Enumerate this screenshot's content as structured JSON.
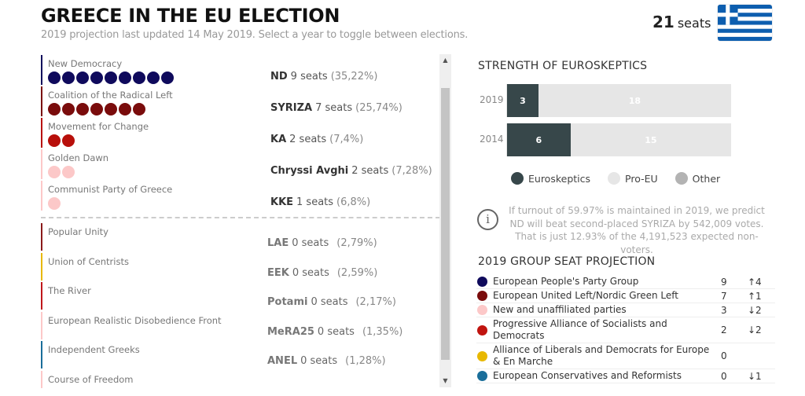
{
  "header": {
    "title": "GREECE IN THE EU ELECTION",
    "subtitle": "2019 projection last updated 14 May 2019. Select a year to toggle between elections.",
    "total_seats": "21",
    "seats_label": "seats",
    "flag_icon": "greece-flag"
  },
  "parties_with_seats": [
    {
      "name": "New Democracy",
      "abbr": "ND",
      "seats": 9,
      "seats_label": "9 seats",
      "pct": "(35,22%)",
      "color": "#0f0a5c"
    },
    {
      "name": "Coalition of the Radical Left",
      "abbr": "SYRIZA",
      "seats": 7,
      "seats_label": "7 seats",
      "pct": "(25,74%)",
      "color": "#7a0c0c"
    },
    {
      "name": "Movement for Change",
      "abbr": "KA",
      "seats": 2,
      "seats_label": "2 seats",
      "pct": "(7,4%)",
      "color": "#b80f0a"
    },
    {
      "name": "Golden Dawn",
      "abbr": "Chryssi Avghi",
      "seats": 2,
      "seats_label": "2 seats",
      "pct": "(7,28%)",
      "color": "#fcc8c8"
    },
    {
      "name": "Communist Party of Greece",
      "abbr": "KKE",
      "seats": 1,
      "seats_label": "1 seats",
      "pct": "(6,8%)",
      "color": "#fcc8c8"
    }
  ],
  "parties_without_seats": [
    {
      "name": "Popular Unity",
      "abbr": "LAE",
      "seats_label": "0 seats",
      "pct": "(2,79%)",
      "color": "#8b1a1a"
    },
    {
      "name": "Union of Centrists",
      "abbr": "EEK",
      "seats_label": "0 seats",
      "pct": "(2,59%)",
      "color": "#e8b800"
    },
    {
      "name": "The River",
      "abbr": "Potami",
      "seats_label": "0 seats",
      "pct": "(2,17%)",
      "color": "#c0181b"
    },
    {
      "name": "European Realistic Disobedience Front",
      "abbr": "MeRA25",
      "seats_label": "0 seats",
      "pct": "(1,35%)",
      "color": "#fcc8c8"
    },
    {
      "name": "Independent Greeks",
      "abbr": "ANEL",
      "seats_label": "0 seats",
      "pct": "(1,28%)",
      "color": "#1a6e9a"
    },
    {
      "name": "Course of Freedom",
      "abbr": "",
      "seats_label": "",
      "pct": "",
      "color": "#fcc8c8"
    }
  ],
  "euroskeptics": {
    "title": "STRENGTH OF EUROSKEPTICS",
    "rows": [
      {
        "year": "2019",
        "euroskeptics": 3,
        "pro_eu": 18,
        "other": 0
      },
      {
        "year": "2014",
        "euroskeptics": 6,
        "pro_eu": 15,
        "other": 0
      }
    ],
    "legend": [
      {
        "label": "Euroskeptics",
        "color": "#37474a"
      },
      {
        "label": "Pro-EU",
        "color": "#e6e6e6"
      },
      {
        "label": "Other",
        "color": "#b3b3b3"
      }
    ]
  },
  "info": {
    "icon": "info-icon",
    "text": "If turnout of 59.97% is maintained in 2019, we predict ND will beat second-placed SYRIZA by 542,009 votes. That is just 12.93% of the 4,191,523 expected non-voters."
  },
  "projection": {
    "title": "2019 GROUP SEAT PROJECTION",
    "rows": [
      {
        "group": "European People's Party Group",
        "seats": "9",
        "change": "↑4",
        "color": "#0f0a5c"
      },
      {
        "group": "European United Left/Nordic Green Left",
        "seats": "7",
        "change": "↑1",
        "color": "#7a0c0c"
      },
      {
        "group": "New and unaffiliated parties",
        "seats": "3",
        "change": "↓2",
        "color": "#fcc8c8"
      },
      {
        "group": "Progressive Alliance of Socialists and Democrats",
        "seats": "2",
        "change": "↓2",
        "color": "#c0140f"
      },
      {
        "group": "Alliance of Liberals and Democrats for Europe & En Marche",
        "seats": "0",
        "change": "",
        "color": "#e8b800"
      },
      {
        "group": "European Conservatives and Reformists",
        "seats": "0",
        "change": "↓1",
        "color": "#1a6e9a"
      }
    ]
  },
  "scrollbar": {
    "up": "▲",
    "down": "▼"
  }
}
